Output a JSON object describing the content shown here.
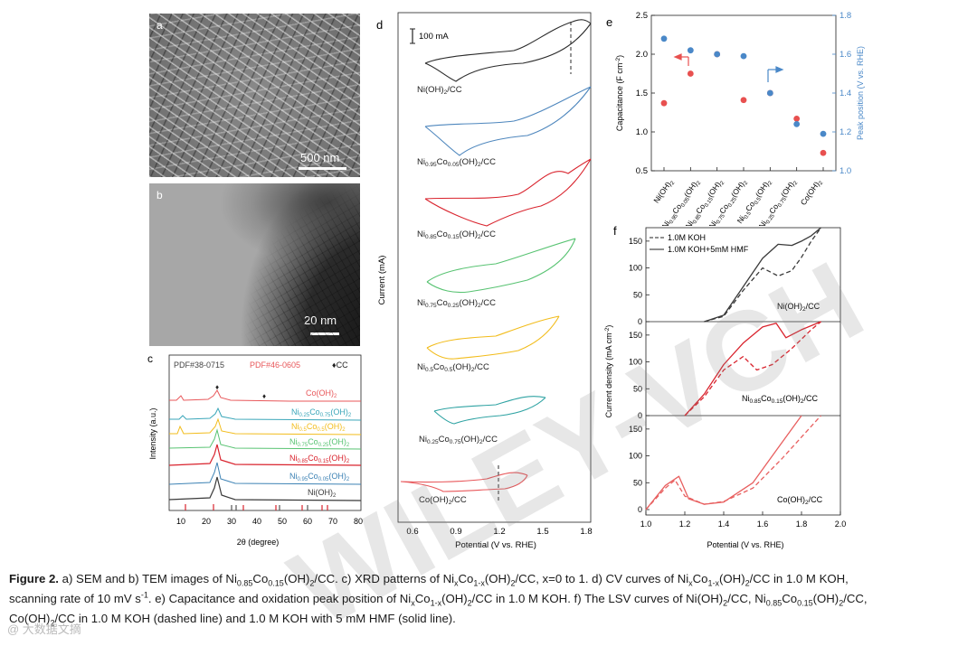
{
  "panels": {
    "a": {
      "label": "a",
      "scale_text": "500 nm"
    },
    "b": {
      "label": "b",
      "scale_text": "20 nm"
    }
  },
  "panel_c": {
    "label": "c",
    "ref1": "PDF#38-0715",
    "ref2": "PDF#46-0605",
    "cc_marker": "♦CC",
    "ylabel": "Intensity (a.u.)",
    "xlabel": "2θ (degree)",
    "xticks": [
      "10",
      "20",
      "30",
      "40",
      "50",
      "60",
      "70",
      "80"
    ],
    "curves": [
      {
        "name": "Co(OH)2",
        "color": "#e8575a"
      },
      {
        "name": "Ni0.25Co0.75(OH)2",
        "color": "#3aa6b9"
      },
      {
        "name": "Ni0.5Co0.5(OH)2",
        "color": "#f2bc1b"
      },
      {
        "name": "Ni0.75Co0.25(OH)2",
        "color": "#58c372"
      },
      {
        "name": "Ni0.85Co0.15(OH)2",
        "color": "#d9232d"
      },
      {
        "name": "Ni0.95Co0.05(OH)2",
        "color": "#3c82b4"
      },
      {
        "name": "Ni(OH)2",
        "color": "#3a3a3a"
      }
    ]
  },
  "panel_d": {
    "label": "d",
    "scale_text": "100 mA",
    "ylabel": "Current (mA)",
    "xlabel": "Potential (V vs. RHE)",
    "xticks": [
      "0.6",
      "0.9",
      "1.2",
      "1.5",
      "1.8"
    ],
    "curves": [
      {
        "name": "Ni(OH)2/CC",
        "color": "#2b2b2b"
      },
      {
        "name": "Ni0.95Co0.05(OH)2/CC",
        "color": "#4d86bd"
      },
      {
        "name": "Ni0.85Co0.15(OH)2/CC",
        "color": "#d9232d"
      },
      {
        "name": "Ni0.75Co0.25(OH)2/CC",
        "color": "#58c372"
      },
      {
        "name": "Ni0.5Co0.5(OH)2/CC",
        "color": "#f2bc1b"
      },
      {
        "name": "Ni0.25Co0.75(OH)2/CC",
        "color": "#2fa3a3"
      },
      {
        "name": "Co(OH)2/CC",
        "color": "#e8575a"
      }
    ]
  },
  "chart_data": [
    {
      "panel": "e",
      "type": "scatter",
      "categories": [
        "Ni(OH)2",
        "Ni0.95Co0.05(OH)2",
        "Ni0.85Co0.15(OH)2",
        "Ni0.75Co0.25(OH)2",
        "Ni0.5Co0.5(OH)2",
        "Ni0.25Co0.75(OH)2",
        "Co(OH)2"
      ],
      "series": [
        {
          "name": "Capacitance",
          "axis": "left",
          "color": "#e8504f",
          "values": [
            1.37,
            1.75,
            2.0,
            1.41,
            1.5,
            1.17,
            0.73
          ]
        },
        {
          "name": "Peak position",
          "axis": "right",
          "color": "#4a88c8",
          "values": [
            1.68,
            1.62,
            1.6,
            1.59,
            1.4,
            1.24,
            1.19
          ]
        }
      ],
      "ylabel": "Capacitance (F cm-2)",
      "y2label": "Peak position (V vs. RHE)",
      "ylim": [
        0.5,
        2.5
      ],
      "y2lim": [
        1.0,
        1.8
      ],
      "yticks": [
        "0.5",
        "1.0",
        "1.5",
        "2.0",
        "2.5"
      ],
      "y2ticks": [
        "1.0",
        "1.2",
        "1.4",
        "1.6",
        "1.8"
      ]
    },
    {
      "panel": "f",
      "type": "line",
      "xlabel": "Potential (V vs. RHE)",
      "ylabel": "Current density (mA cm-2)",
      "xlim": [
        1.0,
        2.0
      ],
      "xticks": [
        "1.0",
        "1.2",
        "1.4",
        "1.6",
        "1.8",
        "2.0"
      ],
      "ylim": [
        0,
        175
      ],
      "yticks": [
        "0",
        "50",
        "100",
        "150"
      ],
      "legend": [
        "1.0M KOH",
        "1.0M KOH+5mM HMF"
      ],
      "legend_styles": [
        "dashed",
        "solid"
      ],
      "subplots": [
        {
          "label": "Ni(OH)2/CC",
          "color": "#3a3a3a",
          "dashed": {
            "x": [
              1.3,
              1.4,
              1.5,
              1.6,
              1.68,
              1.75,
              1.8,
              1.85,
              1.9
            ],
            "y": [
              0,
              10,
              58,
              100,
              85,
              95,
              120,
              150,
              175
            ]
          },
          "solid": {
            "x": [
              1.3,
              1.4,
              1.5,
              1.6,
              1.68,
              1.75,
              1.8,
              1.85,
              1.9
            ],
            "y": [
              0,
              12,
              65,
              118,
              144,
              142,
              150,
              160,
              175
            ]
          }
        },
        {
          "label": "Ni0.85Co0.15(OH)2/CC",
          "color": "#d9232d",
          "dashed": {
            "x": [
              1.2,
              1.3,
              1.4,
              1.5,
              1.57,
              1.65,
              1.75,
              1.85,
              1.9
            ],
            "y": [
              0,
              35,
              85,
              110,
              85,
              95,
              125,
              160,
              175
            ]
          },
          "solid": {
            "x": [
              1.2,
              1.3,
              1.4,
              1.5,
              1.6,
              1.67,
              1.72,
              1.8,
              1.9
            ],
            "y": [
              0,
              40,
              95,
              135,
              165,
              172,
              145,
              160,
              175
            ]
          }
        },
        {
          "label": "Co(OH)2/CC",
          "color": "#e85f5f",
          "dashed": {
            "x": [
              1.0,
              1.1,
              1.15,
              1.2,
              1.3,
              1.4,
              1.55,
              1.7,
              1.9
            ],
            "y": [
              0,
              40,
              55,
              25,
              10,
              15,
              40,
              95,
              175
            ]
          },
          "solid": {
            "x": [
              1.0,
              1.1,
              1.17,
              1.22,
              1.3,
              1.4,
              1.55,
              1.67,
              1.8
            ],
            "y": [
              0,
              45,
              62,
              20,
              10,
              14,
              50,
              110,
              175
            ]
          }
        }
      ]
    }
  ],
  "watermark": {
    "text": "WILEY-VCH",
    "source": "@ 大数据文摘"
  },
  "caption": {
    "fig": "Figure 2.",
    "t1": " a) SEM and b) TEM images of ",
    "f1_base": "Ni",
    "f1_s1": "0.85",
    "f1_mid": "Co",
    "f1_s2": "0.15",
    "f1_end": "(OH)",
    "f1_s3": "2",
    "f1_tail": "/CC.",
    "t2": " c) XRD patterns of Ni",
    "x1": "x",
    "t3": "Co",
    "x2": "1-x",
    "t4": "(OH)",
    "s2a": "2",
    "t5": "/CC, x=0 to 1. d) CV curves of Ni",
    "x3": "x",
    "t6": "Co",
    "x4": "1-x",
    "t7": "(OH)",
    "s2b": "2",
    "t8": "/CC in 1.0 M KOH,",
    "line2a": "scanning rate of 10 mV s",
    "sup1": "-1",
    "line2b": ". e) Capacitance and oxidation peak position of Ni",
    "x5": "x",
    "t9": "Co",
    "x6": "1-x",
    "t10": "(OH)",
    "s2c": "2",
    "t11": "/CC in 1.0 M KOH. f) The LSV curves of Ni(OH)",
    "s2d": "2",
    "t12": "/CC, Ni",
    "n1": "0.85",
    "t13": "Co",
    "n2": "0.15",
    "t14": "(OH)",
    "s2e": "2",
    "t15": "/CC,",
    "line3a": "Co(OH)",
    "s2f": "2",
    "line3b": "/CC in 1.0 M KOH (dashed line) and 1.0 M KOH with 5 mM HMF (solid line)."
  }
}
